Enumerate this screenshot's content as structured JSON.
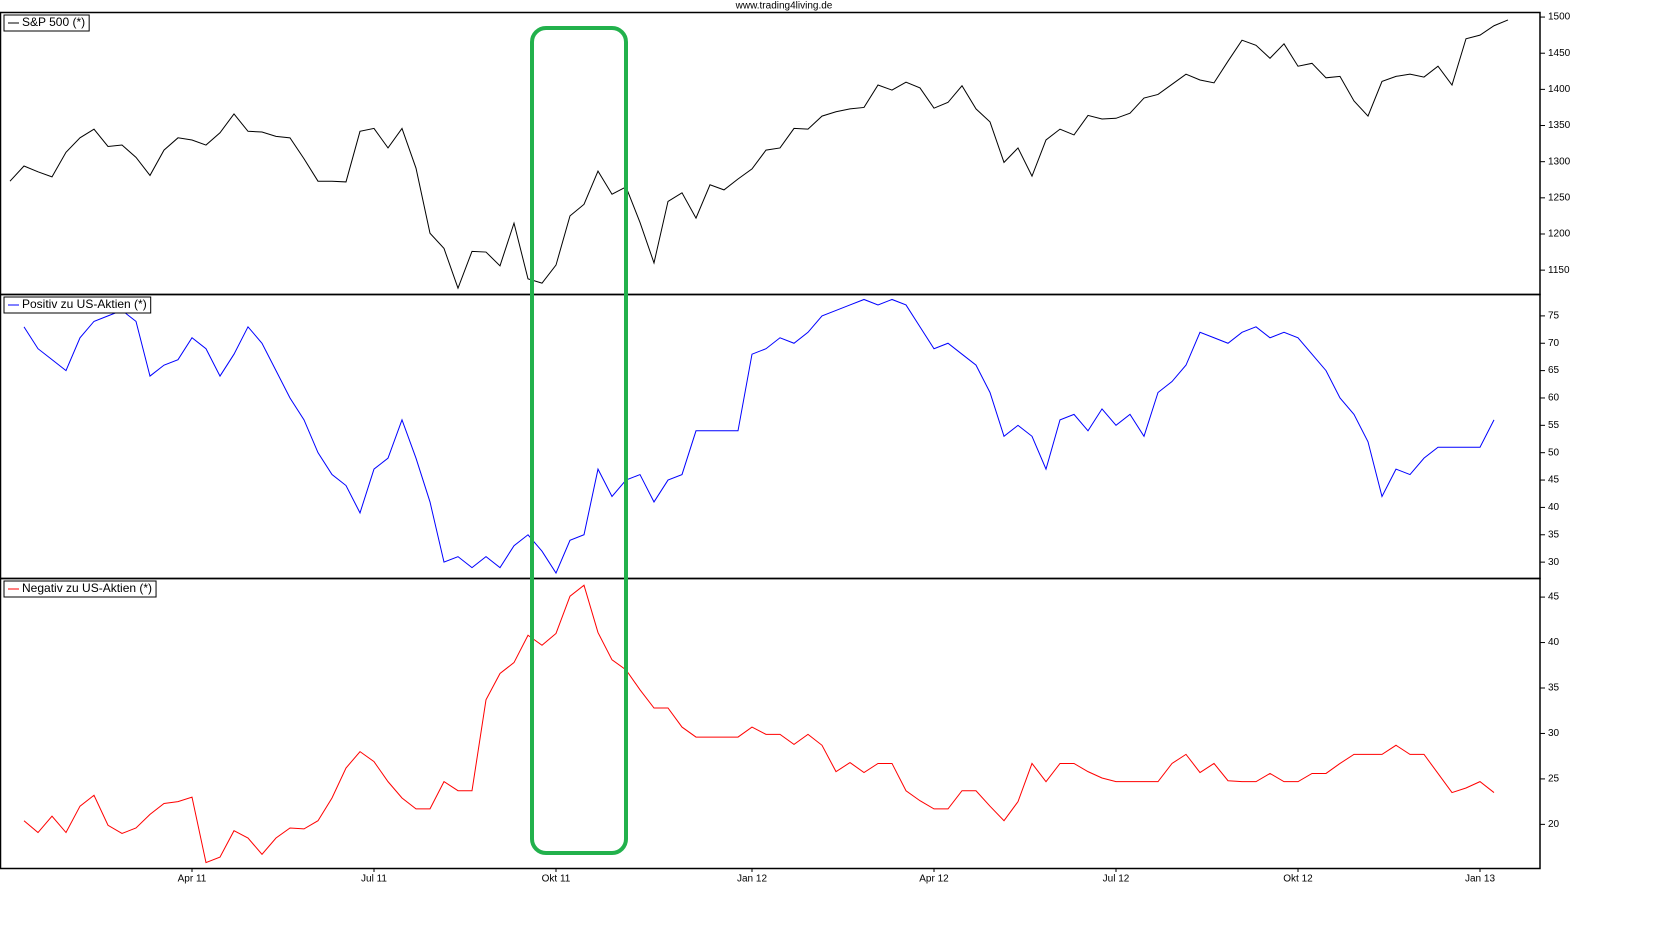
{
  "source": "www.trading4living.de",
  "chart_data": [
    {
      "type": "line",
      "ylim": [
        1117,
        1507
      ],
      "yticks": [
        1150,
        1200,
        1250,
        1300,
        1350,
        1400,
        1450,
        1500
      ],
      "series": [
        {
          "name": "S&P 500 (*)",
          "color": "#000000",
          "values": [
            1273,
            1294,
            1286,
            1279,
            1313,
            1333,
            1345,
            1321,
            1323,
            1306,
            1281,
            1316,
            1333,
            1330,
            1323,
            1340,
            1366,
            1342,
            1341,
            1335,
            1333,
            1304,
            1273,
            1273,
            1272,
            1342,
            1346,
            1319,
            1346,
            1291,
            1201,
            1180,
            1125,
            1176,
            1175,
            1156,
            1215,
            1138,
            1132,
            1157,
            1225,
            1241,
            1287,
            1255,
            1265,
            1216,
            1160,
            1245,
            1257,
            1222,
            1268,
            1261,
            1276,
            1290,
            1316,
            1319,
            1346,
            1345,
            1363,
            1369,
            1373,
            1375,
            1406,
            1399,
            1410,
            1402,
            1374,
            1382,
            1405,
            1373,
            1355,
            1299,
            1319,
            1280,
            1330,
            1345,
            1337,
            1364,
            1359,
            1360,
            1367,
            1388,
            1393,
            1407,
            1421,
            1413,
            1409,
            1439,
            1468,
            1461,
            1443,
            1463,
            1432,
            1436,
            1416,
            1418,
            1384,
            1363,
            1411,
            1418,
            1421,
            1417,
            1432,
            1406,
            1470,
            1475,
            1488,
            1496
          ]
        }
      ]
    },
    {
      "type": "line",
      "ylim": [
        27.1,
        79
      ],
      "yticks": [
        30,
        35,
        40,
        45,
        50,
        55,
        60,
        65,
        70,
        75
      ],
      "series": [
        {
          "name": "Positiv zu US-Aktien (*)",
          "color": "#0000ff",
          "values": [
            null,
            73,
            69,
            67,
            65,
            71,
            74,
            75,
            76,
            74,
            64,
            66,
            67,
            71,
            69,
            64,
            68,
            73,
            70,
            65,
            60,
            56,
            50,
            46,
            44,
            39,
            47,
            49,
            56,
            49,
            41,
            30,
            31,
            29,
            31,
            29,
            33,
            35,
            32,
            28,
            34,
            35,
            47,
            42,
            45,
            46,
            41,
            45,
            46,
            54,
            54,
            54,
            54,
            68,
            69,
            71,
            70,
            72,
            75,
            76,
            77,
            78,
            77,
            78,
            77,
            73,
            69,
            70,
            68,
            66,
            61,
            53,
            55,
            53,
            47,
            56,
            57,
            54,
            58,
            55,
            57,
            53,
            61,
            63,
            66,
            72,
            71,
            70,
            72,
            73,
            71,
            72,
            71,
            68,
            65,
            60,
            57,
            52,
            42,
            47,
            46,
            49,
            51,
            51,
            51,
            51,
            56,
            null
          ]
        }
      ]
    },
    {
      "type": "line",
      "ylim": [
        15.2,
        47.1
      ],
      "yticks": [
        20,
        25,
        30,
        35,
        40,
        45
      ],
      "categories": [
        null,
        null,
        null,
        null,
        null,
        null,
        null,
        null,
        null,
        null,
        null,
        null,
        null,
        "Apr 11",
        null,
        null,
        null,
        null,
        null,
        null,
        null,
        null,
        null,
        null,
        null,
        null,
        "Jul 11",
        null,
        null,
        null,
        null,
        null,
        null,
        null,
        null,
        null,
        null,
        null,
        null,
        "Okt 11",
        null,
        null,
        null,
        null,
        null,
        null,
        null,
        null,
        null,
        null,
        null,
        null,
        null,
        "Jan 12",
        null,
        null,
        null,
        null,
        null,
        null,
        null,
        null,
        null,
        null,
        null,
        null,
        "Apr 12",
        null,
        null,
        null,
        null,
        null,
        null,
        null,
        null,
        null,
        null,
        null,
        null,
        "Jul 12",
        null,
        null,
        null,
        null,
        null,
        null,
        null,
        null,
        null,
        null,
        null,
        null,
        "Okt 12",
        null,
        null,
        null,
        null,
        null,
        null,
        null,
        null,
        null,
        null,
        null,
        null,
        "Jan 13",
        null,
        null
      ],
      "series": [
        {
          "name": "Negativ zu US-Aktien (*)",
          "color": "#ff0000",
          "values": [
            null,
            20.4,
            19.1,
            20.9,
            19.1,
            22,
            23.2,
            19.9,
            19,
            19.6,
            21.1,
            22.3,
            22.5,
            23,
            15.8,
            16.4,
            19.3,
            18.5,
            16.7,
            18.5,
            19.6,
            19.5,
            20.4,
            22.9,
            26.2,
            28,
            26.9,
            24.7,
            22.9,
            21.7,
            21.7,
            24.7,
            23.7,
            23.7,
            33.7,
            36.6,
            37.8,
            40.8,
            39.7,
            41,
            45.1,
            46.3,
            41.1,
            38.1,
            37,
            34.8,
            32.8,
            32.8,
            30.7,
            29.6,
            29.6,
            29.6,
            29.6,
            30.7,
            29.9,
            29.9,
            28.8,
            29.9,
            28.7,
            25.8,
            26.8,
            25.7,
            26.7,
            26.7,
            23.7,
            22.6,
            21.7,
            21.7,
            23.7,
            23.7,
            22,
            20.4,
            22.5,
            26.7,
            24.7,
            26.7,
            26.7,
            25.8,
            25.1,
            24.7,
            24.7,
            24.7,
            24.7,
            26.7,
            27.7,
            25.7,
            26.7,
            24.8,
            24.7,
            24.7,
            25.6,
            24.7,
            24.7,
            25.6,
            25.6,
            26.7,
            27.7,
            27.7,
            27.7,
            28.7,
            27.7,
            27.7,
            25.6,
            23.5,
            24,
            24.7,
            23.5,
            null
          ]
        }
      ]
    }
  ]
}
